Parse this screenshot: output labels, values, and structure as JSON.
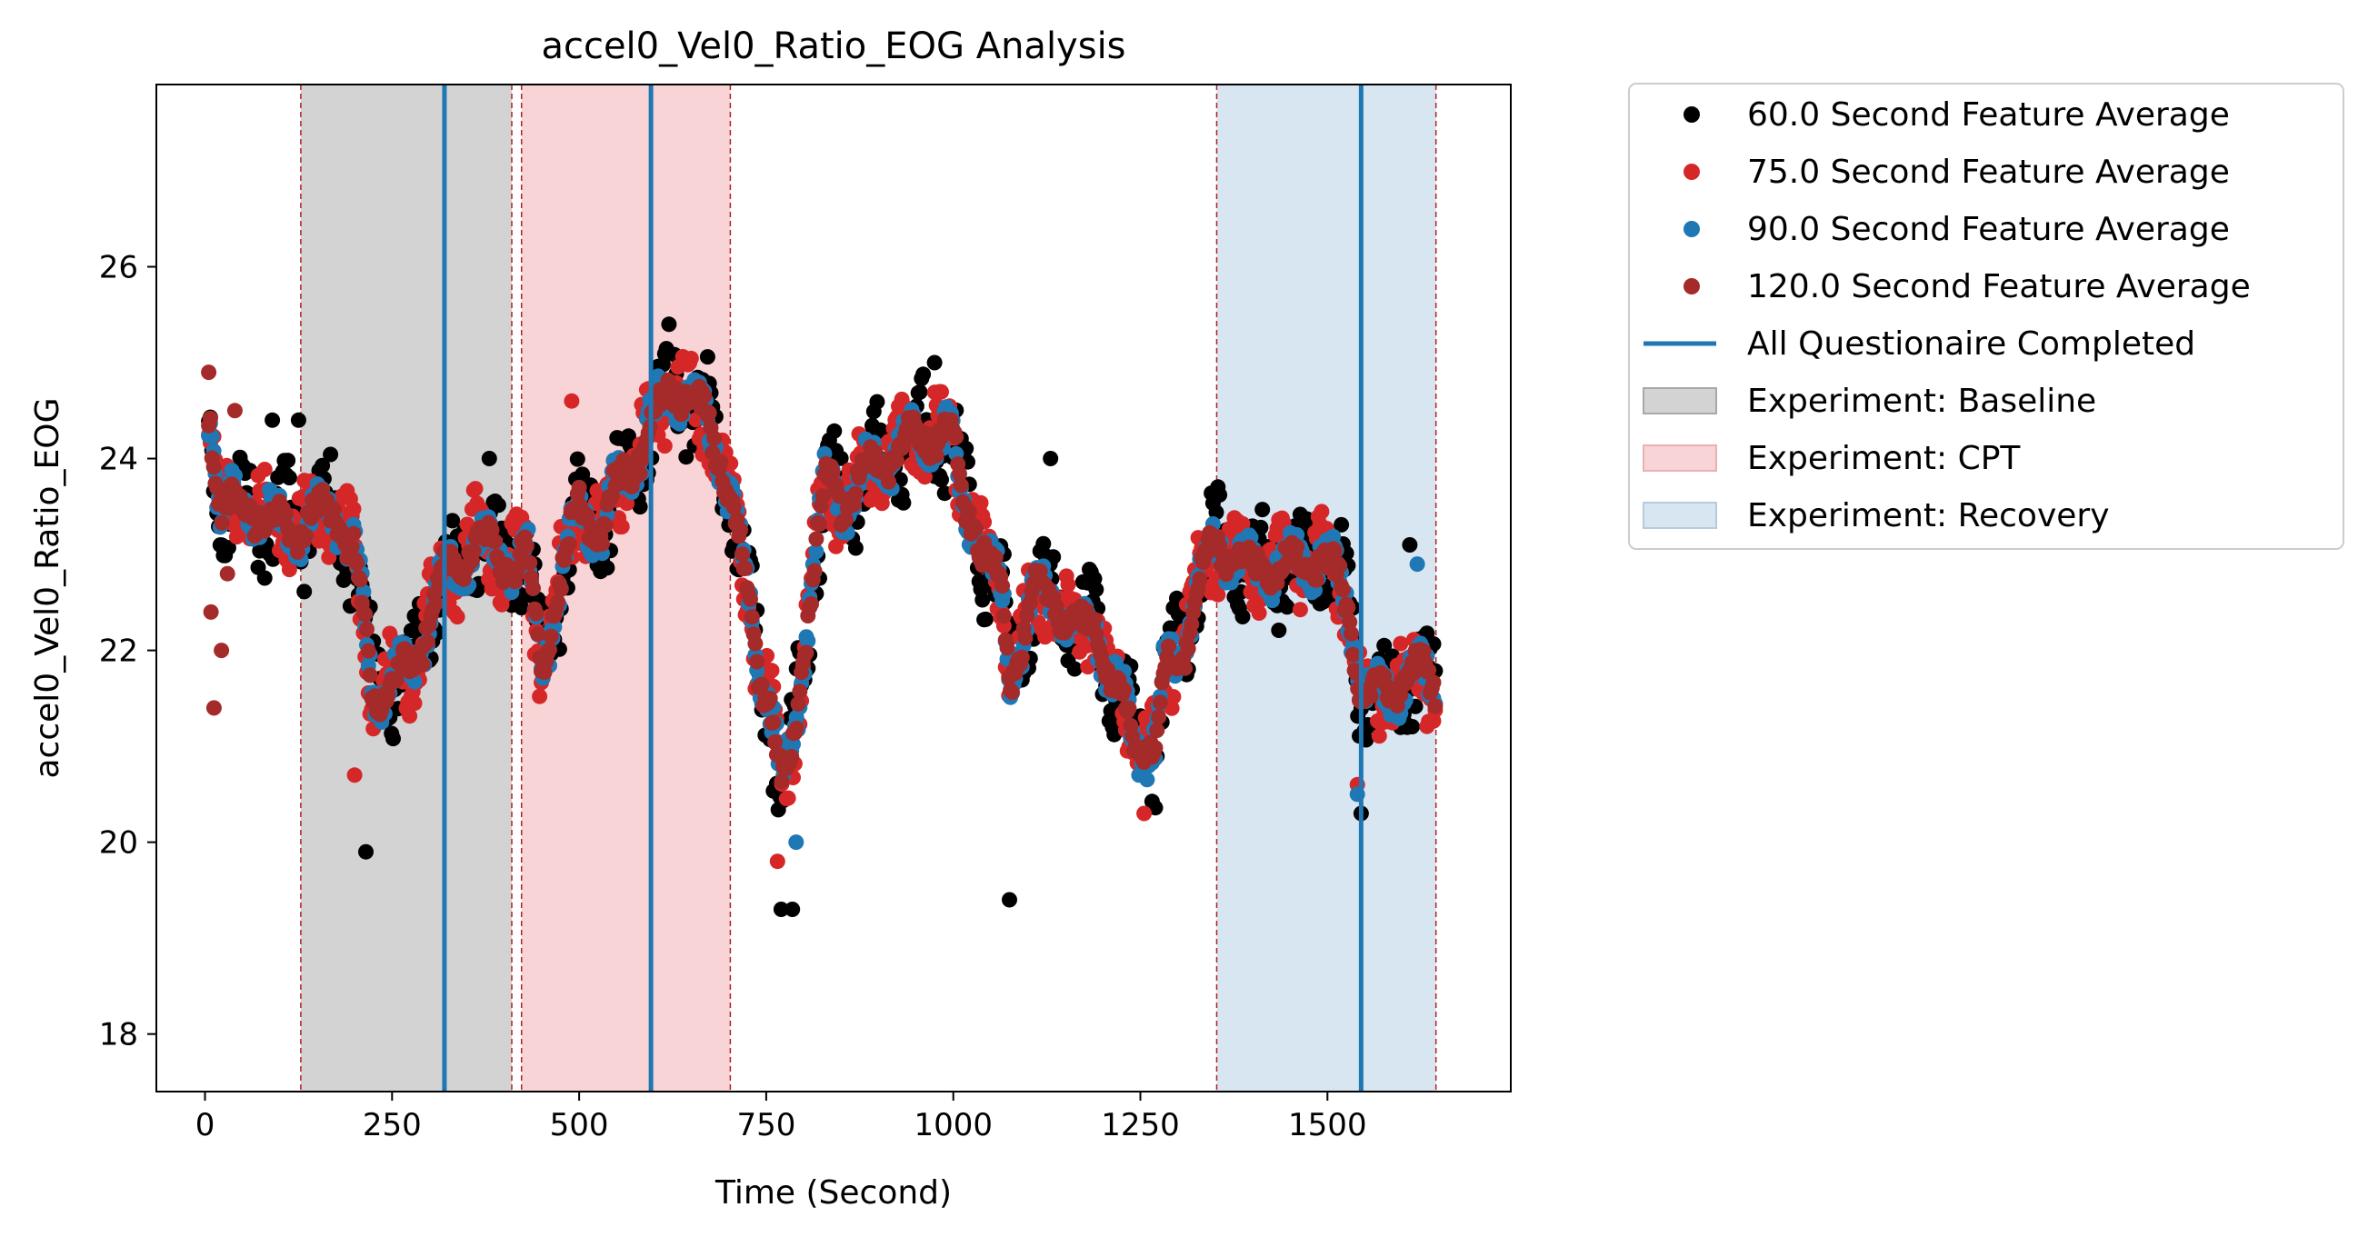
{
  "chart_data": {
    "type": "scatter",
    "title": "accel0_Vel0_Ratio_EOG Analysis",
    "xlabel": "Time (Second)",
    "ylabel": "accel0_Vel0_Ratio_EOG",
    "xlim": [
      -65,
      1745
    ],
    "ylim": [
      17.4,
      27.9
    ],
    "xticks": [
      0,
      250,
      500,
      750,
      1000,
      1250,
      1500
    ],
    "yticks": [
      18,
      20,
      22,
      24,
      26
    ],
    "grid": false,
    "legend_position": "outside-right",
    "colors": {
      "s60": "#000000",
      "s75": "#d62728",
      "s90": "#1f77b4",
      "s120": "#a52a2a",
      "questionnaire": "#1f77b4",
      "baseline": "#d3d3d3",
      "cpt": "#f8d4d6",
      "recovery": "#d8e6f1",
      "boundary": "#b22222"
    },
    "legend": {
      "s60": "60.0 Second Feature Average",
      "s75": "75.0 Second Feature Average",
      "s90": "90.0 Second Feature Average",
      "s120": "120.0 Second Feature Average",
      "questionnaire": "All Questionaire Completed",
      "baseline": "Experiment: Baseline",
      "cpt": "Experiment: CPT",
      "recovery": "Experiment: Recovery"
    },
    "phases": [
      {
        "name": "Experiment: Baseline",
        "start": 128,
        "end": 410,
        "color": "#d3d3d3"
      },
      {
        "name": "Experiment: CPT",
        "start": 423,
        "end": 702,
        "color": "#f8d4d6"
      },
      {
        "name": "Experiment: Recovery",
        "start": 1352,
        "end": 1645,
        "color": "#d8e6f1"
      }
    ],
    "questionnaire_times": [
      320,
      596,
      1545
    ],
    "series": [
      {
        "key": "s60",
        "name": "60.0 Second Feature Average",
        "amp": 0.55,
        "seed": 11,
        "extremes": [
          [
            90,
            24.4
          ],
          [
            125,
            24.4
          ],
          [
            215,
            19.9
          ],
          [
            380,
            24.0
          ],
          [
            620,
            25.4
          ],
          [
            770,
            19.3
          ],
          [
            785,
            19.3
          ],
          [
            975,
            25.0
          ],
          [
            1075,
            19.4
          ],
          [
            1130,
            24.0
          ],
          [
            1545,
            20.3
          ],
          [
            1610,
            23.1
          ]
        ]
      },
      {
        "key": "s75",
        "name": "75.0 Second Feature Average",
        "amp": 0.4,
        "seed": 23,
        "extremes": [
          [
            200,
            20.7
          ],
          [
            490,
            24.6
          ],
          [
            765,
            19.8
          ],
          [
            1255,
            20.3
          ],
          [
            1540,
            20.6
          ]
        ]
      },
      {
        "key": "s90",
        "name": "90.0 Second Feature Average",
        "amp": 0.3,
        "seed": 37,
        "extremes": [
          [
            790,
            20.0
          ],
          [
            1540,
            20.5
          ],
          [
            1620,
            22.9
          ]
        ]
      },
      {
        "key": "s120",
        "name": "120.0 Second Feature Average",
        "amp": 0.22,
        "seed": 53,
        "extremes": [
          [
            5,
            24.9
          ],
          [
            12,
            21.4
          ],
          [
            8,
            22.4
          ],
          [
            22,
            22.0
          ],
          [
            30,
            22.8
          ],
          [
            40,
            24.5
          ]
        ]
      }
    ],
    "trend": [
      [
        5,
        24.6
      ],
      [
        20,
        23.5
      ],
      [
        60,
        23.5
      ],
      [
        100,
        23.3
      ],
      [
        130,
        23.3
      ],
      [
        170,
        23.5
      ],
      [
        200,
        23.0
      ],
      [
        225,
        21.5
      ],
      [
        250,
        21.7
      ],
      [
        280,
        21.8
      ],
      [
        300,
        22.4
      ],
      [
        320,
        22.8
      ],
      [
        340,
        22.8
      ],
      [
        360,
        23.2
      ],
      [
        400,
        22.9
      ],
      [
        430,
        23.0
      ],
      [
        450,
        21.8
      ],
      [
        470,
        22.6
      ],
      [
        500,
        23.5
      ],
      [
        530,
        23.2
      ],
      [
        550,
        23.7
      ],
      [
        575,
        24.0
      ],
      [
        600,
        24.4
      ],
      [
        625,
        24.8
      ],
      [
        650,
        24.6
      ],
      [
        670,
        24.4
      ],
      [
        690,
        24.0
      ],
      [
        710,
        23.3
      ],
      [
        725,
        22.6
      ],
      [
        740,
        21.8
      ],
      [
        755,
        21.5
      ],
      [
        770,
        20.6
      ],
      [
        785,
        20.9
      ],
      [
        800,
        22.0
      ],
      [
        815,
        23.0
      ],
      [
        830,
        23.8
      ],
      [
        850,
        23.5
      ],
      [
        875,
        23.8
      ],
      [
        900,
        23.9
      ],
      [
        925,
        24.1
      ],
      [
        950,
        24.2
      ],
      [
        975,
        24.3
      ],
      [
        1000,
        24.2
      ],
      [
        1010,
        23.6
      ],
      [
        1030,
        23.3
      ],
      [
        1050,
        22.8
      ],
      [
        1065,
        22.6
      ],
      [
        1075,
        21.7
      ],
      [
        1090,
        22.1
      ],
      [
        1110,
        22.6
      ],
      [
        1130,
        22.6
      ],
      [
        1150,
        22.3
      ],
      [
        1170,
        22.2
      ],
      [
        1190,
        22.3
      ],
      [
        1210,
        21.7
      ],
      [
        1225,
        21.5
      ],
      [
        1240,
        21.1
      ],
      [
        1255,
        21.0
      ],
      [
        1270,
        21.0
      ],
      [
        1280,
        21.7
      ],
      [
        1295,
        21.9
      ],
      [
        1310,
        22.1
      ],
      [
        1330,
        22.8
      ],
      [
        1350,
        23.1
      ],
      [
        1375,
        23.0
      ],
      [
        1400,
        22.8
      ],
      [
        1430,
        22.9
      ],
      [
        1460,
        22.9
      ],
      [
        1490,
        23.0
      ],
      [
        1510,
        22.8
      ],
      [
        1530,
        22.4
      ],
      [
        1545,
        21.6
      ],
      [
        1570,
        21.5
      ],
      [
        1600,
        21.7
      ],
      [
        1625,
        21.8
      ],
      [
        1645,
        21.6
      ]
    ]
  }
}
